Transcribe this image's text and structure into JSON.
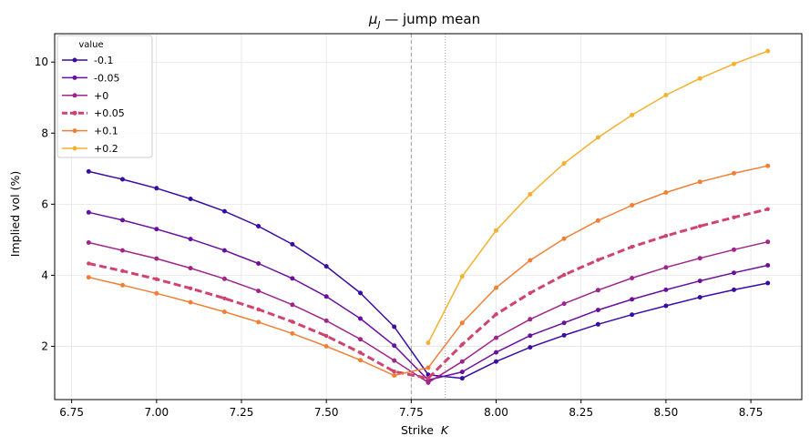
{
  "chart_data": {
    "type": "line",
    "title_main": "μ",
    "title_sub": "J",
    "title_rest": " — jump mean",
    "xlabel_main": "Strike  ",
    "xlabel_var": "K",
    "ylabel": "Implied vol (%)",
    "xlim": [
      6.7,
      8.9
    ],
    "ylim": [
      0.5,
      10.8
    ],
    "xticks": [
      6.75,
      7.0,
      7.25,
      7.5,
      7.75,
      8.0,
      8.25,
      8.5,
      8.75
    ],
    "xtick_labels": [
      "6.75",
      "7.00",
      "7.25",
      "7.50",
      "7.75",
      "8.00",
      "8.25",
      "8.50",
      "8.75"
    ],
    "yticks": [
      2,
      4,
      6,
      8,
      10
    ],
    "ytick_labels": [
      "2",
      "4",
      "6",
      "8",
      "10"
    ],
    "grid": true,
    "vlines": [
      {
        "x": 7.75,
        "style": "dashed",
        "color": "#a0a0a0"
      },
      {
        "x": 7.85,
        "style": "dotted",
        "color": "#a0a0a0"
      }
    ],
    "legend_title": "value",
    "legend_position": "upper-left",
    "x": [
      6.8,
      6.9,
      7.0,
      7.1,
      7.2,
      7.3,
      7.4,
      7.5,
      7.6,
      7.7,
      7.8,
      7.9,
      8.0,
      8.1,
      8.2,
      8.3,
      8.4,
      8.5,
      8.6,
      8.7,
      8.8
    ],
    "series": [
      {
        "name": "-0.1",
        "color": "#3a0ca3",
        "dashed": false,
        "values": [
          6.92,
          6.7,
          6.45,
          6.15,
          5.8,
          5.38,
          4.87,
          4.25,
          3.5,
          2.55,
          1.2,
          1.1,
          1.57,
          1.97,
          2.31,
          2.62,
          2.89,
          3.14,
          3.38,
          3.59,
          3.78
        ]
      },
      {
        "name": "-0.05",
        "color": "#6a0f9e",
        "dashed": false,
        "values": [
          5.77,
          5.55,
          5.3,
          5.02,
          4.7,
          4.33,
          3.91,
          3.4,
          2.78,
          2.02,
          1.05,
          1.28,
          1.83,
          2.3,
          2.66,
          3.02,
          3.32,
          3.59,
          3.84,
          4.07,
          4.28
        ]
      },
      {
        "name": "+0",
        "color": "#a0258a",
        "dashed": false,
        "values": [
          4.92,
          4.7,
          4.47,
          4.2,
          3.9,
          3.56,
          3.17,
          2.72,
          2.2,
          1.6,
          0.98,
          1.57,
          2.24,
          2.76,
          3.2,
          3.58,
          3.92,
          4.22,
          4.48,
          4.72,
          4.94
        ]
      },
      {
        "name": "+0.05",
        "color": "#d1436f",
        "dashed": true,
        "values": [
          4.33,
          4.12,
          3.89,
          3.63,
          3.35,
          3.04,
          2.69,
          2.29,
          1.82,
          1.29,
          1.1,
          2.05,
          2.9,
          3.5,
          4.01,
          4.43,
          4.8,
          5.11,
          5.38,
          5.63,
          5.86
        ]
      },
      {
        "name": "+0.1",
        "color": "#ef8137",
        "dashed": false,
        "values": [
          3.94,
          3.72,
          3.49,
          3.24,
          2.97,
          2.68,
          2.36,
          2.0,
          1.61,
          1.18,
          1.4,
          2.66,
          3.65,
          4.42,
          5.03,
          5.54,
          5.97,
          6.33,
          6.63,
          6.87,
          7.08
        ]
      },
      {
        "name": "+0.2",
        "color": "#f4b12f",
        "dashed": false,
        "values": [
          null,
          null,
          null,
          null,
          null,
          null,
          null,
          null,
          null,
          null,
          2.1,
          3.97,
          5.26,
          6.28,
          7.15,
          7.88,
          8.51,
          9.07,
          9.54,
          9.95,
          10.31
        ]
      }
    ]
  }
}
